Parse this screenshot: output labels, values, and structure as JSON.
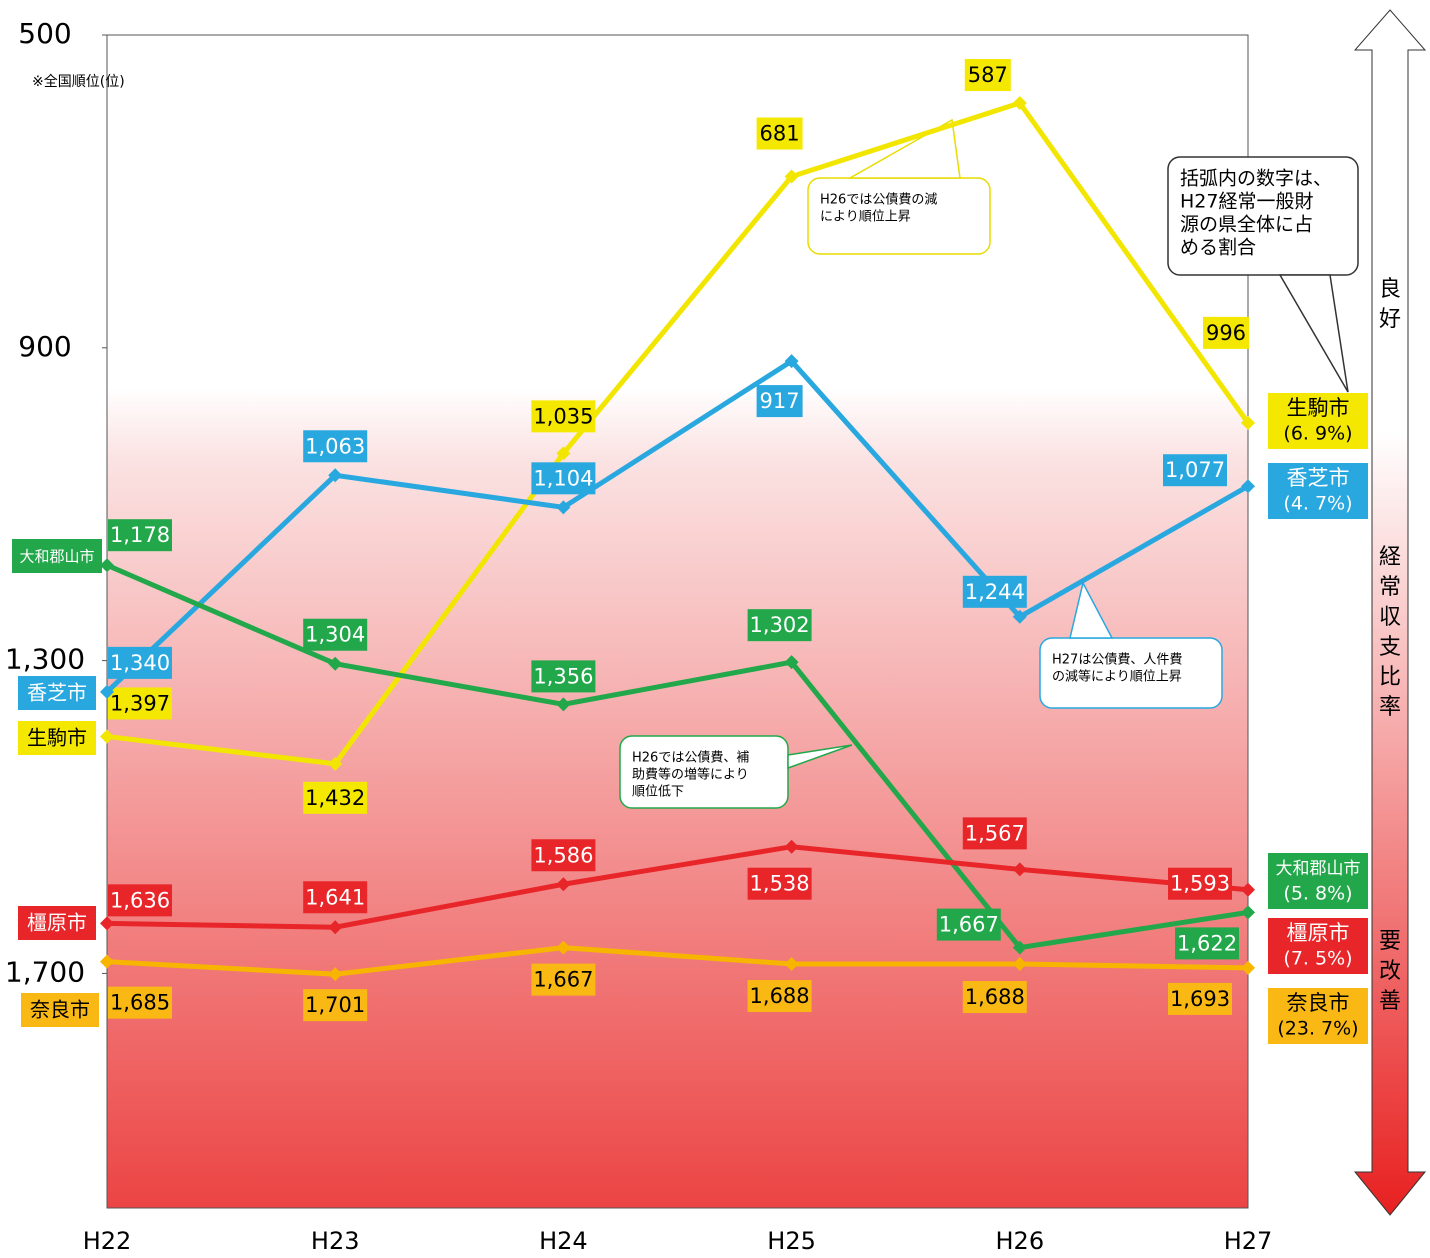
{
  "chart_data": {
    "type": "line",
    "axis_note": "※全国順位(位)",
    "categories": [
      "H22",
      "H23",
      "H24",
      "H25",
      "H26",
      "H27"
    ],
    "ylim": [
      500,
      2000
    ],
    "y_inverted": true,
    "yticks": [
      500,
      900,
      {
        "value": 1300,
        "label": "1,300"
      },
      {
        "value": 1700,
        "label": "1,700"
      }
    ],
    "series": [
      {
        "name": "生駒市",
        "share": "(6. 9%)",
        "color": "#f2e600",
        "label_color": "#f5e800",
        "text_color": "#000",
        "values": [
          1397,
          1432,
          1035,
          681,
          587,
          996
        ],
        "value_labels": [
          "1,397",
          "1,432",
          "1,035",
          "681",
          "587",
          "996"
        ]
      },
      {
        "name": "香芝市",
        "share": "(4. 7%)",
        "color": "#29a8e0",
        "label_color": "#29a8e0",
        "text_color": "#fff",
        "values": [
          1340,
          1063,
          1104,
          917,
          1244,
          1077
        ],
        "value_labels": [
          "1,340",
          "1,063",
          "1,104",
          "917",
          "1,244",
          "1,077"
        ]
      },
      {
        "name": "大和郡山市",
        "share": "(5. 8%)",
        "color": "#22a84a",
        "label_color": "#22a84a",
        "text_color": "#fff",
        "values": [
          1178,
          1304,
          1356,
          1302,
          1667,
          1622
        ],
        "value_labels": [
          "1,178",
          "1,304",
          "1,356",
          "1,302",
          "1,667",
          "1,622"
        ]
      },
      {
        "name": "橿原市",
        "share": "(7. 5%)",
        "color": "#e8262a",
        "label_color": "#e8262a",
        "text_color": "#fff",
        "values": [
          1636,
          1641,
          1586,
          1538,
          1567,
          1593
        ],
        "value_labels": [
          "1,636",
          "1,641",
          "1,586",
          "1,538",
          "1,567",
          "1,593"
        ]
      },
      {
        "name": "奈良市",
        "share": "(23. 7%)",
        "color": "#f7b500",
        "label_color": "#f9b814",
        "text_color": "#000",
        "values": [
          1685,
          1701,
          1667,
          1688,
          1688,
          1693
        ],
        "value_labels": [
          "1,685",
          "1,701",
          "1,667",
          "1,688",
          "1,688",
          "1,693"
        ]
      }
    ],
    "annotations": [
      {
        "lines": [
          "H26では公債費の減",
          "により順位上昇"
        ]
      },
      {
        "lines": [
          "H27は公債費、人件費",
          "の減等により順位上昇"
        ]
      },
      {
        "lines": [
          "H26では公債費、補",
          "助費等の増等により",
          "順位低下"
        ]
      },
      {
        "lines": [
          "括弧内の数字は、",
          "H27経常一般財",
          "源の県全体に占",
          "める割合"
        ]
      }
    ],
    "arrow_labels": {
      "top": "良好",
      "middle": "経常収支比率",
      "bottom": "要改善"
    }
  }
}
